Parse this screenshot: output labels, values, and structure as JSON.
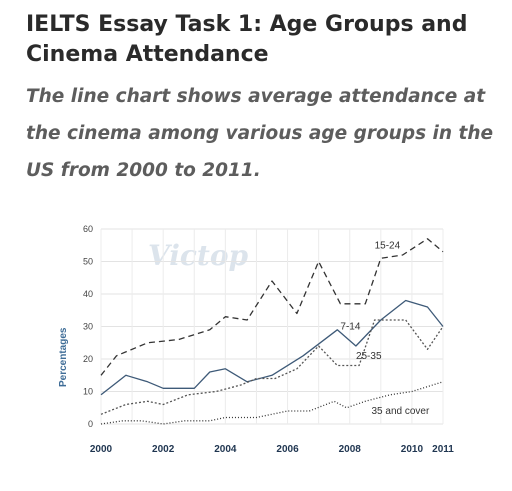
{
  "title": "IELTS Essay Task 1: Age Groups and Cinema Attendance",
  "subtitle": "The line chart shows average attendance at the cinema among various age groups in the US from 2000 to 2011.",
  "watermark": "Victop",
  "chart_data": {
    "type": "line",
    "x": [
      2000,
      2001,
      2002,
      2003,
      2004,
      2005,
      2006,
      2007,
      2008,
      2009,
      2010,
      2011
    ],
    "xticks": [
      2000,
      2002,
      2004,
      2006,
      2008,
      2010,
      2011
    ],
    "xlim": [
      2000,
      2011
    ],
    "ylim": [
      0,
      60
    ],
    "yticks": [
      0,
      10,
      20,
      30,
      40,
      50,
      60
    ],
    "ylabel": "Percentages",
    "xlabel": "",
    "grid": true,
    "series": [
      {
        "name": "15-24",
        "color": "#333333",
        "dash": "6,4",
        "points": [
          [
            2000,
            15
          ],
          [
            2000.5,
            21
          ],
          [
            2001.5,
            25
          ],
          [
            2002.5,
            26
          ],
          [
            2003.5,
            29
          ],
          [
            2004,
            33
          ],
          [
            2004.7,
            32
          ],
          [
            2005.5,
            44
          ],
          [
            2006.3,
            34
          ],
          [
            2007,
            50
          ],
          [
            2007.7,
            37
          ],
          [
            2008.5,
            37
          ],
          [
            2009,
            51
          ],
          [
            2009.7,
            52
          ],
          [
            2010.5,
            57
          ],
          [
            2011,
            53
          ]
        ]
      },
      {
        "name": "7-14",
        "color": "#3e5a78",
        "dash": "",
        "points": [
          [
            2000,
            9
          ],
          [
            2000.8,
            15
          ],
          [
            2001.5,
            13
          ],
          [
            2002,
            11
          ],
          [
            2003,
            11
          ],
          [
            2003.5,
            16
          ],
          [
            2004,
            17
          ],
          [
            2004.7,
            13
          ],
          [
            2005.5,
            15
          ],
          [
            2006.5,
            21
          ],
          [
            2007.6,
            29
          ],
          [
            2008.2,
            24
          ],
          [
            2009,
            32
          ],
          [
            2009.8,
            38
          ],
          [
            2010.5,
            36
          ],
          [
            2011,
            30
          ]
        ]
      },
      {
        "name": "25-35",
        "color": "#555555",
        "dash": "2,2",
        "points": [
          [
            2000,
            3
          ],
          [
            2000.8,
            6
          ],
          [
            2001.5,
            7
          ],
          [
            2002,
            6
          ],
          [
            2002.8,
            9
          ],
          [
            2003.7,
            10
          ],
          [
            2004.5,
            12
          ],
          [
            2005,
            14
          ],
          [
            2005.6,
            14
          ],
          [
            2006.3,
            17
          ],
          [
            2007,
            24
          ],
          [
            2007.6,
            18
          ],
          [
            2008.3,
            18
          ],
          [
            2008.8,
            32
          ],
          [
            2009.8,
            32
          ],
          [
            2010.5,
            23
          ],
          [
            2011,
            30
          ]
        ]
      },
      {
        "name": "35 and cover",
        "color": "#333333",
        "dash": "1,2",
        "points": [
          [
            2000,
            0
          ],
          [
            2000.7,
            1
          ],
          [
            2001.3,
            1
          ],
          [
            2002,
            0
          ],
          [
            2002.7,
            1
          ],
          [
            2003.5,
            1
          ],
          [
            2004,
            2
          ],
          [
            2005,
            2
          ],
          [
            2006,
            4
          ],
          [
            2006.7,
            4
          ],
          [
            2007.5,
            7
          ],
          [
            2007.9,
            5
          ],
          [
            2008.5,
            7
          ],
          [
            2009.3,
            9
          ],
          [
            2010,
            10
          ],
          [
            2011,
            13
          ]
        ]
      }
    ],
    "labels": [
      {
        "text": "15-24",
        "x": 2008.8,
        "y": 55
      },
      {
        "text": "7-14",
        "x": 2007.7,
        "y": 30
      },
      {
        "text": "25-35",
        "x": 2008.2,
        "y": 21
      },
      {
        "text": "35 and cover",
        "x": 2008.7,
        "y": 4
      }
    ]
  }
}
